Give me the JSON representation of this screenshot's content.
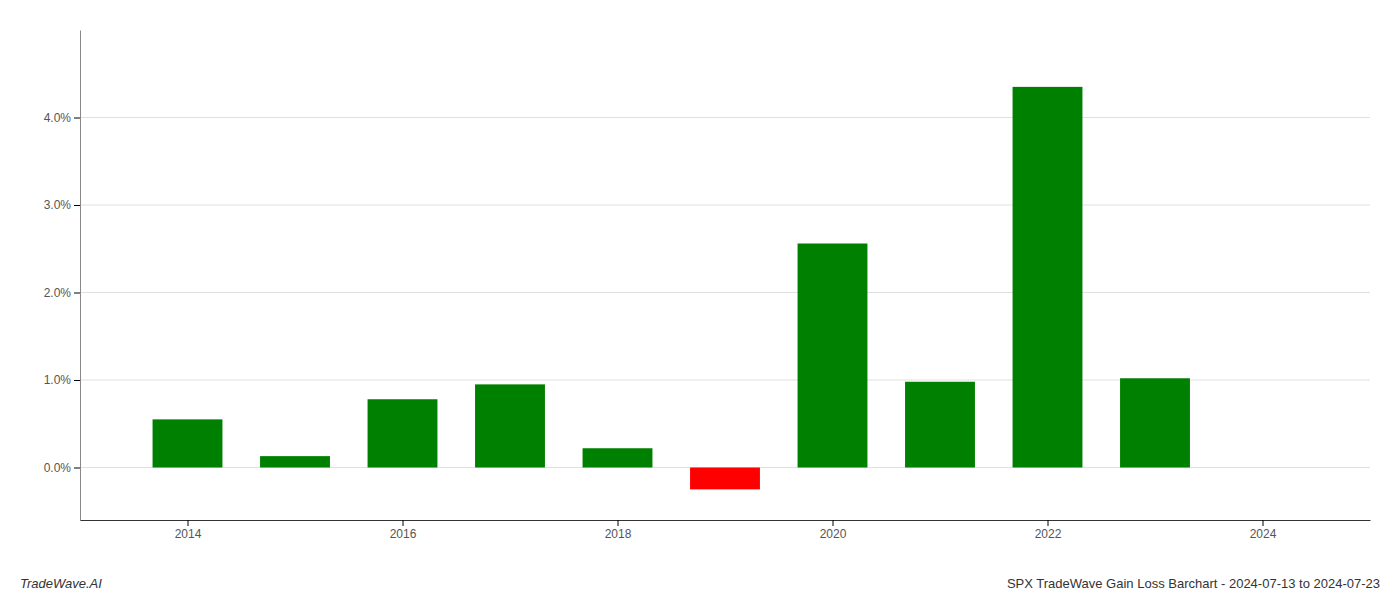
{
  "chart_data": {
    "type": "bar",
    "title": "SPX TradeWave Gain Loss Barchart - 2024-07-13 to 2024-07-23",
    "annotations": [
      "TradeWave.AI"
    ],
    "x": [
      2014,
      2015,
      2016,
      2017,
      2018,
      2019,
      2020,
      2021,
      2022,
      2023
    ],
    "values": [
      0.0055,
      0.0013,
      0.0078,
      0.0095,
      0.0022,
      -0.0025,
      0.0256,
      0.0098,
      0.0435,
      0.0102
    ],
    "colors": [
      "#008000",
      "#008000",
      "#008000",
      "#008000",
      "#008000",
      "#ff0000",
      "#008000",
      "#008000",
      "#008000",
      "#008000"
    ],
    "xlim": [
      2013.0,
      2025.0
    ],
    "xticks": [
      2014,
      2016,
      2018,
      2020,
      2022,
      2024
    ],
    "ylim": [
      -0.006,
      0.05
    ],
    "yticks": [
      {
        "value": 0.0,
        "label": "0.0%"
      },
      {
        "value": 0.01,
        "label": "1.0%"
      },
      {
        "value": 0.02,
        "label": "2.0%"
      },
      {
        "value": 0.03,
        "label": "3.0%"
      },
      {
        "value": 0.04,
        "label": "4.0%"
      }
    ],
    "grid": true
  }
}
